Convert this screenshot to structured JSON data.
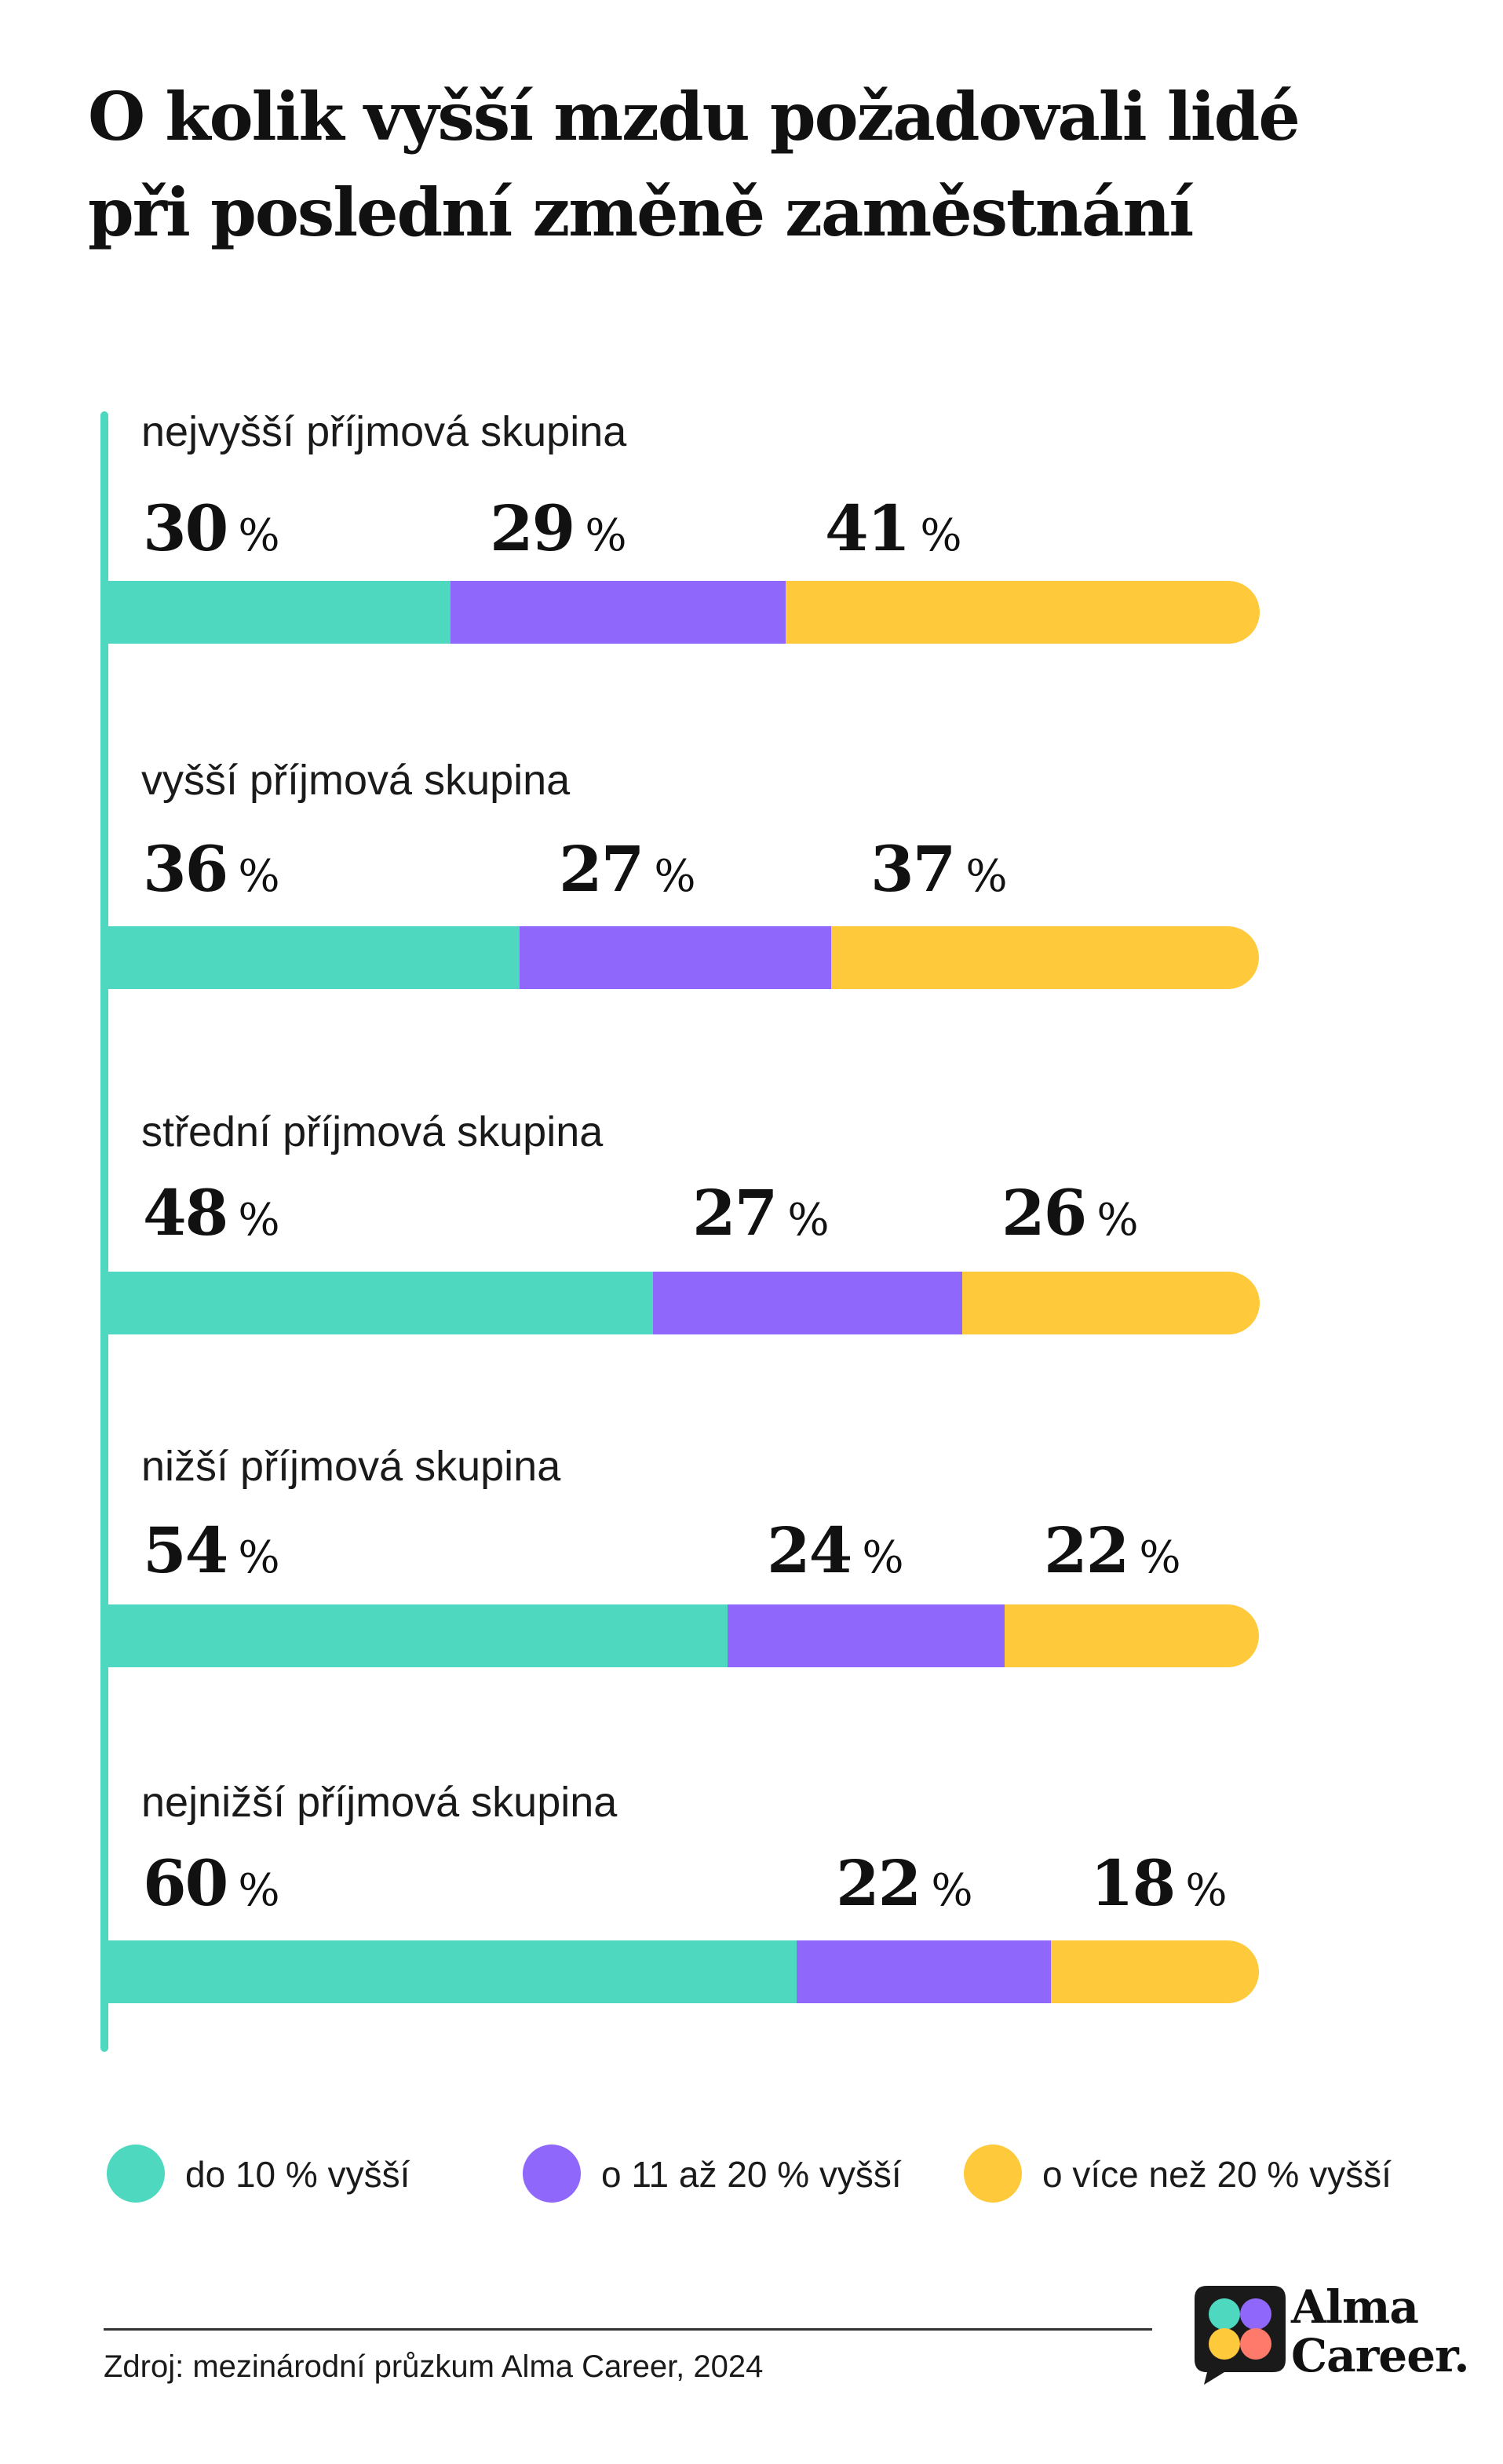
{
  "title_lines": [
    "O kolik vyšší mzdu požadovali lidé",
    "při poslední změně zaměstnání"
  ],
  "colors": {
    "teal": "#4fd8c0",
    "purple": "#8f67fb",
    "yellow": "#ffc93c"
  },
  "chart_data": {
    "type": "bar",
    "orientation": "horizontal",
    "stacked": true,
    "unit": "%",
    "categories": [
      "nejvyšší příjmová skupina",
      "vyšší příjmová skupina",
      "střední příjmová skupina",
      "nižší příjmová skupina",
      "nejnižší příjmová skupina"
    ],
    "series": [
      {
        "name": "do 10 % vyšší",
        "color": "#4fd8c0",
        "values": [
          30,
          36,
          48,
          54,
          60
        ]
      },
      {
        "name": "o 11 až 20 % vyšší",
        "color": "#8f67fb",
        "values": [
          29,
          27,
          27,
          24,
          22
        ]
      },
      {
        "name": "o více než 20 % vyšší",
        "color": "#ffc93c",
        "values": [
          41,
          37,
          26,
          22,
          18
        ]
      }
    ],
    "legend_position": "bottom"
  },
  "source": "Zdroj: mezinárodní průzkum Alma Career, 2024",
  "brand": {
    "line1": "Alma",
    "line2": "Career."
  }
}
